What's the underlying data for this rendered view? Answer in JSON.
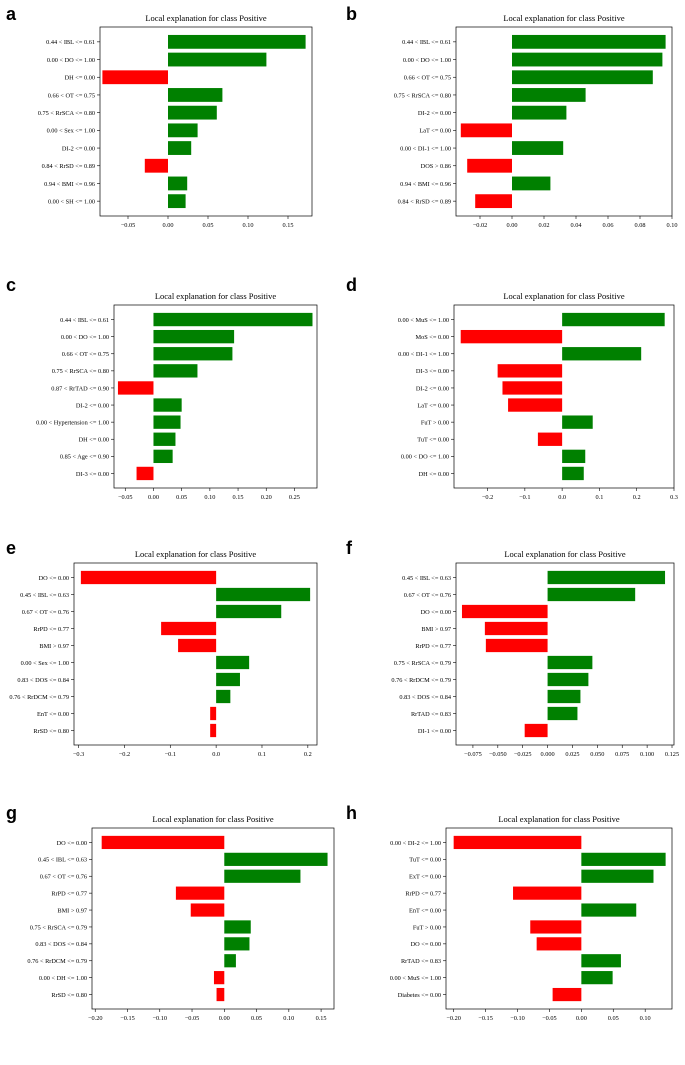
{
  "chart_data": [
    {
      "type": "bar",
      "orientation": "horizontal",
      "panel": "a",
      "title": "Local explanation for class Positive",
      "categories": [
        "0.44 < IBL <= 0.61",
        "0.00 < DO <= 1.00",
        "DH <= 0.00",
        "0.66 < OT <= 0.75",
        "0.75 < RrSCA <= 0.80",
        "0.00 < Sex <= 1.00",
        "DI-2 <= 0.00",
        "0.84 < RrSD <= 0.89",
        "0.94 < BMI <= 0.96",
        "0.00 < SH <= 1.00"
      ],
      "values": [
        0.172,
        0.123,
        -0.082,
        0.068,
        0.061,
        0.037,
        0.029,
        -0.029,
        0.024,
        0.022
      ],
      "xlim": [
        -0.085,
        0.18
      ],
      "xticks": [
        -0.05,
        0.0,
        0.05,
        0.1,
        0.15
      ],
      "xtick_labels": [
        "−0.05",
        "0.00",
        "0.05",
        "0.10",
        "0.15"
      ],
      "colors": {
        "positive": "#008000",
        "negative": "#ff0000"
      }
    },
    {
      "type": "bar",
      "orientation": "horizontal",
      "panel": "b",
      "title": "Local explanation for class Positive",
      "categories": [
        "0.44 < IBL <= 0.61",
        "0.00 < DO <= 1.00",
        "0.66 < OT <= 0.75",
        "0.75 < RrSCA <= 0.80",
        "DI-2 <= 0.00",
        "LaT <= 0.00",
        "0.00 < DI-1 <= 1.00",
        "DOS > 0.86",
        "0.94 < BMI <= 0.96",
        "0.84 < RrSD <= 0.89"
      ],
      "values": [
        0.096,
        0.094,
        0.088,
        0.046,
        0.034,
        -0.032,
        0.032,
        -0.028,
        0.024,
        -0.023
      ],
      "xlim": [
        -0.035,
        0.1
      ],
      "xticks": [
        -0.02,
        0.0,
        0.02,
        0.04,
        0.06,
        0.08,
        0.1
      ],
      "xtick_labels": [
        "−0.02",
        "0.00",
        "0.02",
        "0.04",
        "0.06",
        "0.08",
        "0.10"
      ],
      "colors": {
        "positive": "#008000",
        "negative": "#ff0000"
      }
    },
    {
      "type": "bar",
      "orientation": "horizontal",
      "panel": "c",
      "title": "Local explanation for class Positive",
      "categories": [
        "0.44 < IBL <= 0.61",
        "0.00 < DO <= 1.00",
        "0.66 < OT <= 0.75",
        "0.75 < RrSCA <= 0.80",
        "0.87 < RrTAD <= 0.90",
        "DI-2 <= 0.00",
        "0.00 < Hypertension <= 1.00",
        "DH <= 0.00",
        "0.85 < Age <= 0.90",
        "DI-3 <= 0.00"
      ],
      "values": [
        0.282,
        0.143,
        0.14,
        0.078,
        -0.063,
        0.05,
        0.048,
        0.039,
        0.034,
        -0.03
      ],
      "xlim": [
        -0.07,
        0.29
      ],
      "xticks": [
        -0.05,
        0.0,
        0.05,
        0.1,
        0.15,
        0.2,
        0.25
      ],
      "xtick_labels": [
        "−0.05",
        "0.00",
        "0.05",
        "0.10",
        "0.15",
        "0.20",
        "0.25"
      ],
      "colors": {
        "positive": "#008000",
        "negative": "#ff0000"
      }
    },
    {
      "type": "bar",
      "orientation": "horizontal",
      "panel": "d",
      "title": "Local explanation for class Positive",
      "categories": [
        "0.00 < MuS <= 1.00",
        "MoS <= 0.00",
        "0.00 < DI-1 <= 1.00",
        "DI-3 <= 0.00",
        "DI-2 <= 0.00",
        "LaT <= 0.00",
        "FuT > 0.00",
        "TuT <= 0.00",
        "0.00 < DO <= 1.00",
        "DH <= 0.00"
      ],
      "values": [
        0.275,
        -0.272,
        0.212,
        -0.173,
        -0.16,
        -0.145,
        0.082,
        -0.065,
        0.062,
        0.058
      ],
      "xlim": [
        -0.29,
        0.3
      ],
      "xticks": [
        -0.2,
        -0.1,
        0.0,
        0.1,
        0.2,
        0.3
      ],
      "xtick_labels": [
        "−0.2",
        "−0.1",
        "0.0",
        "0.1",
        "0.2",
        "0.3"
      ],
      "colors": {
        "positive": "#008000",
        "negative": "#ff0000"
      }
    },
    {
      "type": "bar",
      "orientation": "horizontal",
      "panel": "e",
      "title": "Local explanation for class Positive",
      "categories": [
        "DO <= 0.00",
        "0.45 < IBL <= 0.63",
        "0.67 < OT <= 0.76",
        "RrPD <= 0.77",
        "BMI > 0.97",
        "0.00 < Sex <= 1.00",
        "0.83 < DOS <= 0.84",
        "0.76 < RrDCM <= 0.79",
        "EnT <= 0.00",
        "RrSD <= 0.80"
      ],
      "values": [
        -0.295,
        0.205,
        0.142,
        -0.12,
        -0.083,
        0.072,
        0.052,
        0.031,
        -0.013,
        -0.013
      ],
      "xlim": [
        -0.31,
        0.22
      ],
      "xticks": [
        -0.3,
        -0.2,
        -0.1,
        0.0,
        0.1,
        0.2
      ],
      "xtick_labels": [
        "−0.3",
        "−0.2",
        "−0.1",
        "0.0",
        "0.1",
        "0.2"
      ],
      "colors": {
        "positive": "#008000",
        "negative": "#ff0000"
      }
    },
    {
      "type": "bar",
      "orientation": "horizontal",
      "panel": "f",
      "title": "Local explanation for class Positive",
      "categories": [
        "0.45 < IBL <= 0.63",
        "0.67 < OT <= 0.76",
        "DO <= 0.00",
        "BMI > 0.97",
        "RrPD <= 0.77",
        "0.75 < RrSCA <= 0.79",
        "0.76 < RrDCM <= 0.79",
        "0.83 < DOS <= 0.84",
        "RrTAD <= 0.83",
        "DI-1 <= 0.00"
      ],
      "values": [
        0.118,
        0.088,
        -0.086,
        -0.063,
        -0.062,
        0.045,
        0.041,
        0.033,
        0.03,
        -0.023
      ],
      "xlim": [
        -0.092,
        0.127
      ],
      "xticks": [
        -0.075,
        -0.05,
        -0.025,
        0.0,
        0.025,
        0.05,
        0.075,
        0.1,
        0.125
      ],
      "xtick_labels": [
        "−0.075",
        "−0.050",
        "−0.025",
        "0.000",
        "0.025",
        "0.050",
        "0.075",
        "0.100",
        "0.125"
      ],
      "colors": {
        "positive": "#008000",
        "negative": "#ff0000"
      }
    },
    {
      "type": "bar",
      "orientation": "horizontal",
      "panel": "g",
      "title": "Local explanation for class Positive",
      "categories": [
        "DO <= 0.00",
        "0.45 < IBL <= 0.63",
        "0.67 < OT <= 0.76",
        "RrPD <= 0.77",
        "BMI > 0.97",
        "0.75 < RrSCA <= 0.79",
        "0.83 < DOS <= 0.84",
        "0.76 < RrDCM <= 0.79",
        "0.00 < DH <= 1.00",
        "RrSD <= 0.80"
      ],
      "values": [
        -0.19,
        0.16,
        0.118,
        -0.075,
        -0.052,
        0.041,
        0.039,
        0.018,
        -0.016,
        -0.012
      ],
      "xlim": [
        -0.205,
        0.17
      ],
      "xticks": [
        -0.2,
        -0.15,
        -0.1,
        -0.05,
        0.0,
        0.05,
        0.1,
        0.15
      ],
      "xtick_labels": [
        "−0.20",
        "−0.15",
        "−0.10",
        "−0.05",
        "0.00",
        "0.05",
        "0.10",
        "0.15"
      ],
      "colors": {
        "positive": "#008000",
        "negative": "#ff0000"
      }
    },
    {
      "type": "bar",
      "orientation": "horizontal",
      "panel": "h",
      "title": "Local explanation for class Positive",
      "categories": [
        "0.00 < DI-2 <= 1.00",
        "TuT <= 0.00",
        "ExT <= 0.00",
        "RrPD <= 0.77",
        "EnT <= 0.00",
        "FuT > 0.00",
        "DO <= 0.00",
        "RrTAD <= 0.83",
        "0.00 < MuS <= 1.00",
        "Diabetes <= 0.00"
      ],
      "values": [
        -0.2,
        0.132,
        0.113,
        -0.107,
        0.086,
        -0.08,
        -0.07,
        0.062,
        0.049,
        -0.045
      ],
      "xlim": [
        -0.212,
        0.142
      ],
      "xticks": [
        -0.2,
        -0.15,
        -0.1,
        -0.05,
        0.0,
        0.05,
        0.1
      ],
      "xtick_labels": [
        "−0.20",
        "−0.15",
        "−0.10",
        "−0.05",
        "0.00",
        "0.05",
        "0.10"
      ],
      "colors": {
        "positive": "#008000",
        "negative": "#ff0000"
      }
    }
  ]
}
